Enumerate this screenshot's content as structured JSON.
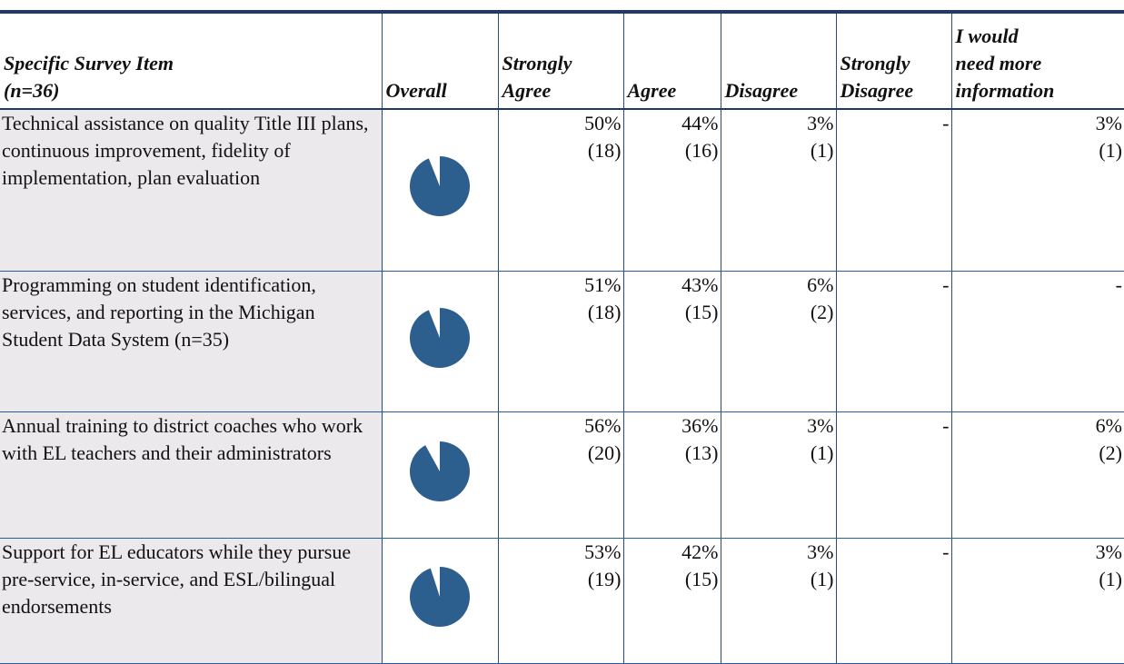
{
  "table": {
    "headers": [
      [
        "Specific Survey Item",
        "(n=36)"
      ],
      [
        "Overall"
      ],
      [
        "Strongly",
        "Agree"
      ],
      [
        "Agree"
      ],
      [
        "Disagree"
      ],
      [
        "Strongly",
        "Disagree"
      ],
      [
        "I would",
        "need more",
        "information"
      ]
    ],
    "rows": [
      {
        "item": "Technical assistance on quality Title III plans, continuous improvement, fidelity of implementation, plan evaluation",
        "cells": [
          [
            "50%",
            "(18)"
          ],
          [
            "44%",
            "(16)"
          ],
          [
            "3%",
            "(1)"
          ],
          [
            "-"
          ],
          [
            "3%",
            "(1)"
          ]
        ]
      },
      {
        "item": "Programming on student identification, services, and reporting in the Michigan Student Data System (n=35)",
        "cells": [
          [
            "51%",
            "(18)"
          ],
          [
            "43%",
            "(15)"
          ],
          [
            "6%",
            "(2)"
          ],
          [
            "-"
          ],
          [
            "-"
          ]
        ]
      },
      {
        "item": "Annual training to district coaches who work with EL teachers and their administrators",
        "cells": [
          [
            "56%",
            "(20)"
          ],
          [
            "36%",
            "(13)"
          ],
          [
            "3%",
            "(1)"
          ],
          [
            "-"
          ],
          [
            "6%",
            "(2)"
          ]
        ]
      },
      {
        "item": "Support for EL educators while they pursue pre-service, in-service, and ESL/bilingual endorsements",
        "cells": [
          [
            "53%",
            "(19)"
          ],
          [
            "42%",
            "(15)"
          ],
          [
            "3%",
            "(1)"
          ],
          [
            "-"
          ],
          [
            "3%",
            "(1)"
          ]
        ]
      }
    ]
  }
}
